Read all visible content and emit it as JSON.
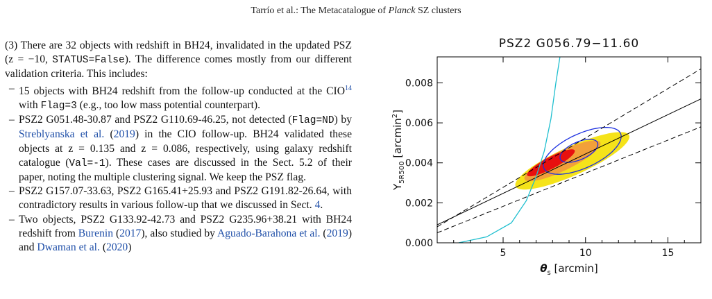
{
  "running_head": {
    "prefix": "Tarrío et al.: The Metacatalogue of ",
    "italic": "Planck",
    "suffix": " SZ clusters"
  },
  "text": {
    "p1": {
      "a": "(3) There are 32 objects with redshift in BH24, invalidated in the updated PSZ (",
      "z": "z = −10, ",
      "status": "STATUS=False",
      "b": "). The difference comes mostly from our different validation criteria. This includes:"
    },
    "item1": {
      "a": "15 objects with BH24 redshift from the follow-up conducted at the CIO",
      "sup": "14",
      "b": " with ",
      "code": "Flag=3",
      "c": " (e.g., too low mass potential counterpart)."
    },
    "item2": {
      "a": "PSZ2 G051.48-30.87 and PSZ2 G110.69-46.25, not detected (",
      "code1": "Flag=ND",
      "b": ") by ",
      "cite": "Streblyanska et al.",
      "c": " (",
      "year": "2019",
      "d": ") in the CIO follow-up. BH24 validated these objects at ",
      "z1": "z = 0.135",
      "e": " and ",
      "z2": "z = 0.086",
      "f": ", respectively, using galaxy redshift catalogue (",
      "code2": "Val=-1",
      "g": "). These cases are discussed in the Sect. 5.2 of their paper, noting the multiple clustering signal. We keep the PSZ flag."
    },
    "item3": {
      "a": "PSZ2 G157.07-33.63, PSZ2 G165.41+25.93 and PSZ2 G191.82-26.64, with contradictory results in various follow-up that we discussed in Sect. ",
      "ref": "4",
      "b": "."
    },
    "item4": {
      "a": "Two objects, PSZ2 G133.92-42.73 and PSZ2 G235.96+38.21 with BH24 redshift from ",
      "cite": "Burenin",
      "b": " (",
      "year": "2017",
      "c": "), also studied by ",
      "cite2": "Aguado-Barahona et al.",
      "d": " (",
      "year2": "2019",
      "e": ") and ",
      "cite3": "Dwaman et al.",
      "f": " (",
      "year3": "2020",
      "g": ")"
    }
  },
  "chart_data": {
    "type": "contour",
    "title": "PSZ2 G056.79−11.60",
    "xlabel_symbol": "θ",
    "xlabel_sub": "s",
    "xlabel_unit": " [arcmin]",
    "ylabel_symbol": "Y",
    "ylabel_sub": "5R500",
    "ylabel_unit": " [arcmin",
    "ylabel_unit_sup": "2",
    "ylabel_close": "]",
    "xlim": [
      1,
      17
    ],
    "ylim": [
      0.0,
      0.0093
    ],
    "xticks": [
      5,
      10,
      15
    ],
    "yticks": [
      0.0,
      0.002,
      0.004,
      0.006,
      0.008
    ],
    "yticks_labels": [
      "0.000",
      "0.002",
      "0.004",
      "0.006",
      "0.008"
    ],
    "filled_regions": [
      {
        "level": "outer",
        "color": "#f5e31a",
        "center": [
          9.2,
          0.0041
        ],
        "major": 8.2,
        "minor": 0.00055,
        "slope": 0.00039
      },
      {
        "level": "middle",
        "color": "#f2a03a",
        "center": [
          8.6,
          0.0041
        ],
        "major": 5.6,
        "minor": 0.00036,
        "slope": 0.00042
      },
      {
        "level": "inner",
        "color": "#e8100f",
        "center": [
          7.9,
          0.004
        ],
        "major": 3.6,
        "minor": 0.00021,
        "slope": 0.00045
      }
    ],
    "blue_contours": [
      {
        "center": [
          9.8,
          0.0046
        ],
        "major": 5.6,
        "minor": 0.00062,
        "slope": 0.00045
      },
      {
        "center": [
          9.6,
          0.0046
        ],
        "major": 2.7,
        "minor": 0.00032,
        "slope": 0.00045
      }
    ],
    "lines": [
      {
        "style": "solid",
        "points": [
          [
            1,
            0.0009
          ],
          [
            17,
            0.0072
          ]
        ]
      },
      {
        "style": "dashed",
        "points": [
          [
            1,
            0.0008
          ],
          [
            17,
            0.0087
          ]
        ]
      },
      {
        "style": "dashed",
        "points": [
          [
            1,
            0.0005
          ],
          [
            17,
            0.0058
          ]
        ]
      }
    ],
    "cyan_curve": [
      [
        2.3,
        0.0
      ],
      [
        4.0,
        0.0003
      ],
      [
        5.5,
        0.001
      ],
      [
        6.4,
        0.0021
      ],
      [
        7.0,
        0.0033
      ],
      [
        7.5,
        0.0046
      ],
      [
        7.9,
        0.0062
      ],
      [
        8.2,
        0.008
      ],
      [
        8.45,
        0.0093
      ]
    ],
    "colors": {
      "outer": "#f5e31a",
      "middle": "#f2a03a",
      "inner": "#e8100f",
      "blue": "#1a2ee0",
      "cyan": "#1fbfcf",
      "lines": "#000000"
    }
  }
}
